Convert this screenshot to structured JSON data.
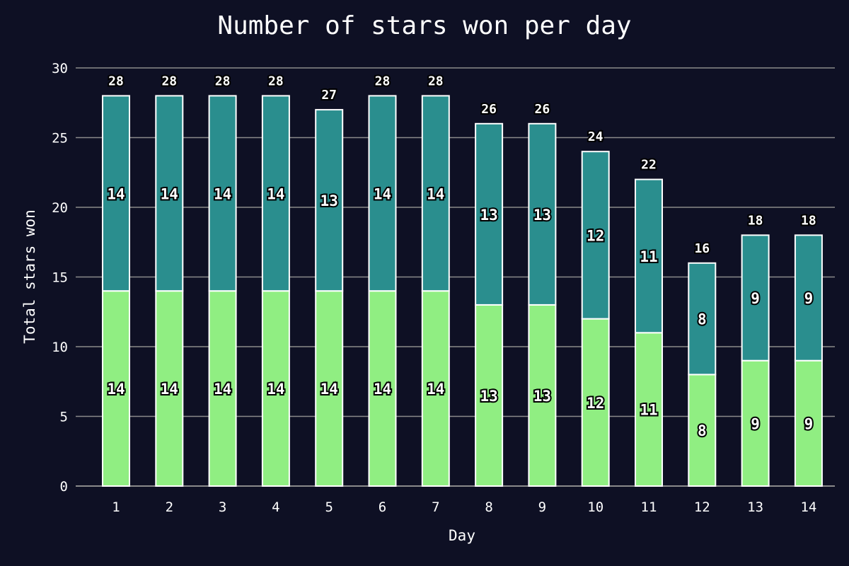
{
  "chart_data": {
    "type": "bar",
    "stacked": true,
    "title": "Number of stars won per day",
    "xlabel": "Day",
    "ylabel": "Total stars won",
    "categories": [
      "1",
      "2",
      "3",
      "4",
      "5",
      "6",
      "7",
      "8",
      "9",
      "10",
      "11",
      "12",
      "13",
      "14"
    ],
    "ylim": [
      0,
      30
    ],
    "yticks": [
      0,
      5,
      10,
      15,
      20,
      25,
      30
    ],
    "grid": "horizontal",
    "series": [
      {
        "values": [
          14,
          14,
          14,
          14,
          14,
          14,
          14,
          13,
          13,
          12,
          11,
          8,
          9,
          9
        ],
        "color": "#90ee82"
      },
      {
        "values": [
          14,
          14,
          14,
          14,
          13,
          14,
          14,
          13,
          13,
          12,
          11,
          8,
          9,
          9
        ],
        "color": "#2a8e8e"
      }
    ],
    "totals": [
      28,
      28,
      28,
      28,
      27,
      28,
      28,
      26,
      26,
      24,
      22,
      16,
      18,
      18
    ]
  }
}
